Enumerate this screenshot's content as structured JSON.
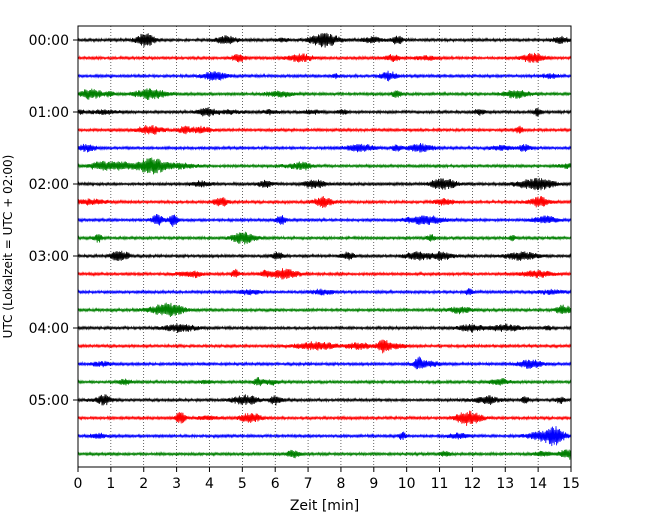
{
  "chart_data": {
    "type": "line",
    "title": "",
    "xlabel": "Zeit  [min]",
    "ylabel": "UTC (Lokalzeit = UTC + 02:00)",
    "xlim": [
      0,
      15
    ],
    "x_ticks": [
      0,
      1,
      2,
      3,
      4,
      5,
      6,
      7,
      8,
      9,
      10,
      11,
      12,
      13,
      14,
      15
    ],
    "x_tick_labels": [
      "0",
      "1",
      "2",
      "3",
      "4",
      "5",
      "6",
      "7",
      "8",
      "9",
      "10",
      "11",
      "12",
      "13",
      "14",
      "15"
    ],
    "y_tick_labels": [
      "00:00",
      "01:00",
      "02:00",
      "03:00",
      "04:00",
      "05:00"
    ],
    "trace_interval_min": 15,
    "trace_count": 24,
    "trace_colors": [
      "#000000",
      "#ff0000",
      "#0000ff",
      "#008000"
    ],
    "grid": {
      "x": true,
      "y": false,
      "style": "dotted"
    },
    "legend": "none"
  }
}
